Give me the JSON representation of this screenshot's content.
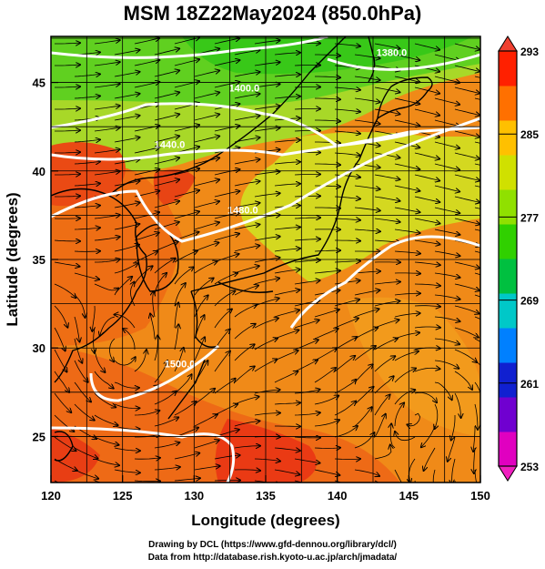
{
  "title": "MSM 18Z22May2024 (850.0hPa)",
  "x_axis": {
    "label": "Longitude (degrees)",
    "ticks": [
      120,
      125,
      130,
      135,
      140,
      145,
      150
    ],
    "range": [
      120,
      150
    ]
  },
  "y_axis": {
    "label": "Latitude (degrees)",
    "ticks": [
      25,
      30,
      35,
      40,
      45
    ],
    "range": [
      22.4,
      47.6
    ]
  },
  "colorbar": {
    "ticks": [
      253,
      261,
      269,
      277,
      285,
      293
    ],
    "range": [
      253,
      293
    ],
    "colors": [
      "#e000c0",
      "#7000d0",
      "#1020d0",
      "#0080ff",
      "#00c8c8",
      "#00c040",
      "#30d000",
      "#90e000",
      "#d0e000",
      "#ffc000",
      "#ff7000",
      "#ff2000"
    ]
  },
  "contour_labels": [
    {
      "text": "1380.0",
      "lon": 143.8,
      "lat": 46.5
    },
    {
      "text": "1400.0",
      "lon": 133.5,
      "lat": 44.5
    },
    {
      "text": "1440.0",
      "lon": 128.3,
      "lat": 41.3
    },
    {
      "text": "1480.0",
      "lon": 133.4,
      "lat": 37.6
    },
    {
      "text": "1500.0",
      "lon": 129.0,
      "lat": 28.9
    }
  ],
  "credits": {
    "line1": "Drawing by DCL (https://www.gfd-dennou.org/library/dcl/)",
    "line2": "Data from http://database.rish.kyoto-u.ac.jp/arch/jmadata/"
  }
}
